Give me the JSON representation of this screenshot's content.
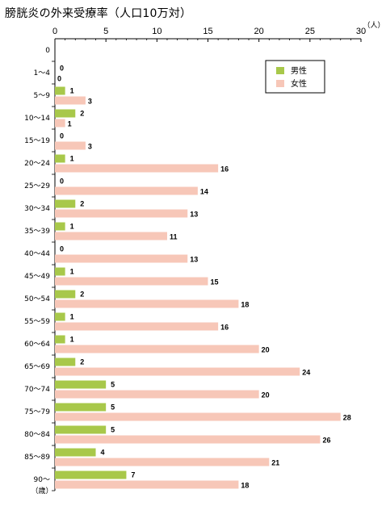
{
  "chart_data": {
    "type": "bar",
    "orientation": "horizontal",
    "title": "膀胱炎の外来受療率（人口10万対）",
    "x_unit": "（人）",
    "y_unit": "（歳）",
    "xlim": [
      0,
      30
    ],
    "xticks": [
      0,
      5,
      10,
      15,
      20,
      25,
      30
    ],
    "categories": [
      "0",
      "1～4",
      "5～9",
      "10～14",
      "15～19",
      "20～24",
      "25～29",
      "30～34",
      "35～39",
      "40～44",
      "45～49",
      "50～54",
      "55～59",
      "60～64",
      "65～69",
      "70～74",
      "75～79",
      "80～84",
      "85～89",
      "90～"
    ],
    "series": [
      {
        "name": "男性",
        "color": "#a8c84a",
        "values": [
          null,
          0,
          1,
          2,
          0,
          1,
          0,
          2,
          1,
          0,
          1,
          2,
          1,
          1,
          2,
          5,
          5,
          5,
          4,
          7
        ],
        "labels": [
          "",
          "0",
          "1",
          "2",
          "0",
          "1",
          "0",
          "2",
          "1",
          "0",
          "1",
          "2",
          "1",
          "1",
          "2",
          "5",
          "5",
          "5",
          "4",
          "7"
        ]
      },
      {
        "name": "女性",
        "color": "#f7c7b8",
        "values": [
          null,
          0,
          3,
          1,
          3,
          16,
          14,
          13,
          11,
          13,
          15,
          18,
          16,
          20,
          24,
          20,
          28,
          26,
          21,
          18
        ],
        "labels": [
          "",
          "0",
          "3",
          "1",
          "3",
          "16",
          "14",
          "13",
          "11",
          "13",
          "15",
          "18",
          "16",
          "20",
          "24",
          "20",
          "28",
          "26",
          "21",
          "18"
        ]
      }
    ],
    "legend_position": "top-right",
    "grid": false
  }
}
